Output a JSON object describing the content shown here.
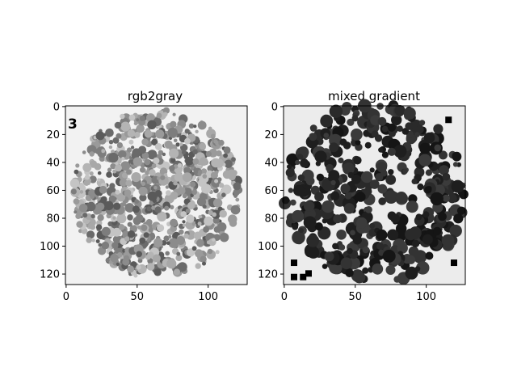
{
  "chart_data": [
    {
      "type": "image",
      "title": "rgb2gray",
      "xlabel": "",
      "ylabel": "",
      "xlim": [
        0,
        127
      ],
      "ylim": [
        127,
        0
      ],
      "xticks": [
        0,
        50,
        100
      ],
      "yticks": [
        0,
        20,
        40,
        60,
        80,
        100,
        120
      ],
      "image_size": [
        128,
        128
      ],
      "colormap": "gray",
      "content": "Ishihara-style color-blindness plate converted to grayscale: circle of gray dots on light background",
      "corner_label": "3"
    },
    {
      "type": "image",
      "title": "mixed gradient",
      "xlabel": "",
      "ylabel": "",
      "xlim": [
        0,
        127
      ],
      "ylim": [
        127,
        0
      ],
      "xticks": [
        0,
        50,
        100
      ],
      "yticks": [
        0,
        20,
        40,
        60,
        80,
        100,
        120
      ],
      "image_size": [
        128,
        128
      ],
      "colormap": "gray",
      "content": "Mixed gradient magnitude: dark blob texture with bright gaps revealing a faint digit"
    }
  ]
}
